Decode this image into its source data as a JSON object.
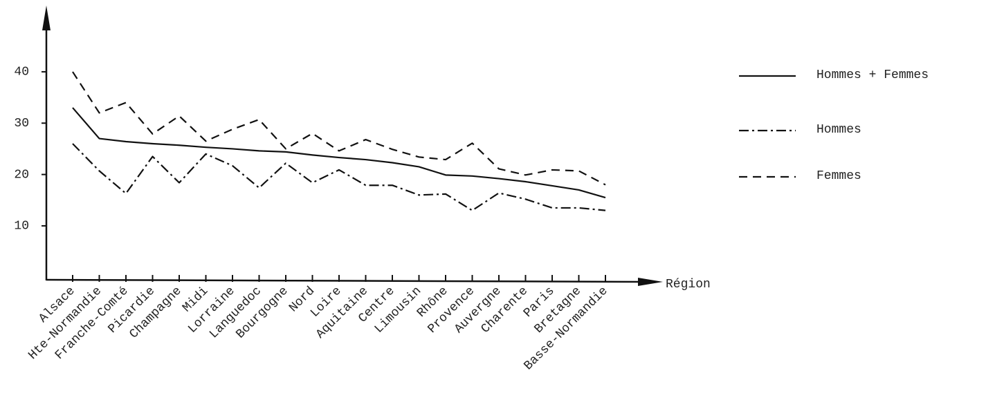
{
  "chart_data": {
    "type": "line",
    "xlabel": "Région",
    "categories": [
      "Alsace",
      "Hte-Normandie",
      "Franche-Comté",
      "Picardie",
      "Champagne",
      "Midi",
      "Lorraine",
      "Languedoc",
      "Bourgogne",
      "Nord",
      "Loire",
      "Aquitaine",
      "Centre",
      "Limousin",
      "Rhône",
      "Provence",
      "Auvergne",
      "Charente",
      "Paris",
      "Bretagne",
      "Basse-Normandie"
    ],
    "series": [
      {
        "name": "Hommes + Femmes",
        "color": "#111111",
        "dash": "none",
        "values": [
          33,
          27,
          26.4,
          26,
          25.7,
          25.3,
          25,
          24.6,
          24.4,
          23.8,
          23.3,
          22.9,
          22.3,
          21.5,
          19.9,
          19.7,
          19.2,
          18.6,
          17.8,
          17,
          15.5
        ]
      },
      {
        "name": "Hommes",
        "color": "#111111",
        "dash": "14 5 3 5",
        "values": [
          26,
          20.7,
          16.3,
          23.5,
          18.4,
          24,
          21.7,
          17.4,
          22.2,
          18.4,
          20.9,
          17.9,
          17.9,
          16,
          16.2,
          13,
          16.4,
          15.2,
          13.5,
          13.5,
          13
        ]
      },
      {
        "name": "Femmes",
        "color": "#111111",
        "dash": "12 8",
        "values": [
          40,
          32,
          34,
          27.9,
          31.4,
          26.5,
          28.8,
          30.7,
          25,
          28,
          24.6,
          26.8,
          24.9,
          23.4,
          22.9,
          26.1,
          21.1,
          19.9,
          20.9,
          20.7,
          18
        ]
      }
    ],
    "ylim": [
      -0.5,
      52.5
    ],
    "yticks": [
      10,
      20,
      30,
      40
    ],
    "grid": false
  }
}
